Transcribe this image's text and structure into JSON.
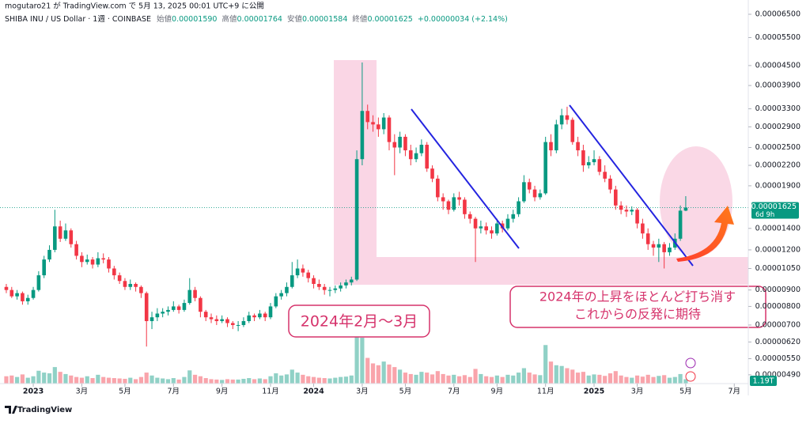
{
  "chart_data": {
    "type": "candlestick",
    "published": "mogutaro21 が TradingView.com で 5月 13, 2025 00:01 UTC+9 に公開",
    "title": "SHIBA INU / US Dollar · 1週 · COINBASE",
    "legend": {
      "open_label": "始値",
      "open": "0.00001590",
      "high_label": "高値",
      "high": "0.00001764",
      "low_label": "安値",
      "low": "0.00001584",
      "close_label": "終値",
      "close": "0.00001625",
      "change": "+0.00000034 (+2.14%)"
    },
    "last_price_label": "0.00001625",
    "countdown": "6d 9h",
    "brand": "TradingView",
    "annotations": [
      "2024年2月〜3月",
      "2024年の上昇をほとんど打ち消す",
      "これからの反発に期待"
    ],
    "up_color": "#089981",
    "down_color": "#f23645",
    "log_scale": true,
    "grid": false,
    "ylim": [
      4.6e-06,
      7.2e-05
    ],
    "yticks": [
      {
        "value": 6.5e-05,
        "label": "0.00006500"
      },
      {
        "value": 5.5e-05,
        "label": "0.00005500"
      },
      {
        "value": 4.5e-05,
        "label": "0.00004500"
      },
      {
        "value": 3.9e-05,
        "label": "0.00003900"
      },
      {
        "value": 3.3e-05,
        "label": "0.00003300"
      },
      {
        "value": 2.9e-05,
        "label": "0.00002900"
      },
      {
        "value": 2.5e-05,
        "label": "0.00002500"
      },
      {
        "value": 2.2e-05,
        "label": "0.00002200"
      },
      {
        "value": 1.9e-05,
        "label": "0.00001900"
      },
      {
        "value": 1.4e-05,
        "label": "0.00001400"
      },
      {
        "value": 1.2e-05,
        "label": "0.00001200"
      },
      {
        "value": 1.05e-05,
        "label": "0.00001050"
      },
      {
        "value": 9e-06,
        "label": "0.00000900"
      },
      {
        "value": 8e-06,
        "label": "0.00000800"
      },
      {
        "value": 7e-06,
        "label": "0.00000700"
      },
      {
        "value": 6.2e-06,
        "label": "0.00000620"
      },
      {
        "value": 5.5e-06,
        "label": "0.00000550"
      },
      {
        "value": 4.9e-06,
        "label": "0.00000490"
      }
    ],
    "xlim": [
      -1.17,
      137.6
    ],
    "xticks": [
      {
        "value": 5,
        "label": "2023"
      },
      {
        "value": 14,
        "label": "3月"
      },
      {
        "value": 22,
        "label": "5月"
      },
      {
        "value": 31,
        "label": "7月"
      },
      {
        "value": 40,
        "label": "9月"
      },
      {
        "value": 49,
        "label": "11月"
      },
      {
        "value": 57,
        "label": "2024"
      },
      {
        "value": 66,
        "label": "3月"
      },
      {
        "value": 74,
        "label": "5月"
      },
      {
        "value": 83,
        "label": "7月"
      },
      {
        "value": 91,
        "label": "9月"
      },
      {
        "value": 100,
        "label": "11月"
      },
      {
        "value": 109,
        "label": "2025"
      },
      {
        "value": 117,
        "label": "3月"
      },
      {
        "value": 126,
        "label": "5月"
      },
      {
        "value": 135,
        "label": "7月"
      }
    ],
    "ohlc": [
      [
        9.2e-06,
        9.4e-06,
        8.8e-06,
        9e-06
      ],
      [
        9e-06,
        9.2e-06,
        8.5e-06,
        8.6e-06
      ],
      [
        8.6e-06,
        9e-06,
        8.4e-06,
        8.8e-06
      ],
      [
        8.8e-06,
        8.9e-06,
        8.1e-06,
        8.3e-06
      ],
      [
        8.3e-06,
        8.7e-06,
        8.1e-06,
        8.5e-06
      ],
      [
        8.5e-06,
        9.2e-06,
        8.4e-06,
        9e-06
      ],
      [
        9e-06,
        1.03e-05,
        8.9e-06,
        1e-05
      ],
      [
        1e-05,
        1.15e-05,
        9.8e-06,
        1.12e-05
      ],
      [
        1.12e-05,
        1.24e-05,
        1.1e-05,
        1.2e-05
      ],
      [
        1.2e-05,
        1.6e-05,
        1.18e-05,
        1.42e-05
      ],
      [
        1.42e-05,
        1.48e-05,
        1.27e-05,
        1.3e-05
      ],
      [
        1.3e-05,
        1.45e-05,
        1.28e-05,
        1.38e-05
      ],
      [
        1.38e-05,
        1.4e-05,
        1.22e-05,
        1.25e-05
      ],
      [
        1.25e-05,
        1.28e-05,
        1.12e-05,
        1.15e-05
      ],
      [
        1.15e-05,
        1.18e-05,
        1.06e-05,
        1.1e-05
      ],
      [
        1.1e-05,
        1.16e-05,
        1.08e-05,
        1.12e-05
      ],
      [
        1.12e-05,
        1.14e-05,
        1.05e-05,
        1.08e-05
      ],
      [
        1.08e-05,
        1.18e-05,
        1.06e-05,
        1.13e-05
      ],
      [
        1.13e-05,
        1.17e-05,
        1.09e-05,
        1.12e-05
      ],
      [
        1.12e-05,
        1.14e-05,
        1.02e-05,
        1.05e-05
      ],
      [
        1.05e-05,
        1.07e-05,
        9.7e-06,
        1e-05
      ],
      [
        1e-05,
        1.02e-05,
        9.4e-06,
        9.6e-06
      ],
      [
        9.6e-06,
        9.8e-06,
        9e-06,
        9.2e-06
      ],
      [
        9.2e-06,
        9.7e-06,
        9e-06,
        9.4e-06
      ],
      [
        9.4e-06,
        9.5e-06,
        8.9e-06,
        9.2e-06
      ],
      [
        9.2e-06,
        9.3e-06,
        8.5e-06,
        8.8e-06
      ],
      [
        8.8e-06,
        8.9e-06,
        6e-06,
        7.2e-06
      ],
      [
        7.2e-06,
        7.7e-06,
        6.8e-06,
        7.4e-06
      ],
      [
        7.4e-06,
        7.9e-06,
        7.2e-06,
        7.6e-06
      ],
      [
        7.6e-06,
        7.9e-06,
        7.4e-06,
        7.7e-06
      ],
      [
        7.7e-06,
        8e-06,
        7.5e-06,
        7.8e-06
      ],
      [
        7.8e-06,
        8.3e-06,
        7.7e-06,
        8e-06
      ],
      [
        8e-06,
        8.1e-06,
        7.6e-06,
        7.8e-06
      ],
      [
        7.8e-06,
        8.4e-06,
        7.7e-06,
        8.2e-06
      ],
      [
        8.2e-06,
        9.8e-06,
        8.1e-06,
        9e-06
      ],
      [
        9e-06,
        9.2e-06,
        8.3e-06,
        8.5e-06
      ],
      [
        8.5e-06,
        8.6e-06,
        7.4e-06,
        7.7e-06
      ],
      [
        7.7e-06,
        7.8e-06,
        7.2e-06,
        7.4e-06
      ],
      [
        7.4e-06,
        7.6e-06,
        7.1e-06,
        7.3e-06
      ],
      [
        7.3e-06,
        7.5e-06,
        7e-06,
        7.2e-06
      ],
      [
        7.2e-06,
        7.5e-06,
        7.1e-06,
        7.3e-06
      ],
      [
        7.3e-06,
        7.4e-06,
        6.9e-06,
        7.1e-06
      ],
      [
        7.1e-06,
        7.2e-06,
        6.8e-06,
        7e-06
      ],
      [
        7e-06,
        7.2e-06,
        6.7e-06,
        7e-06
      ],
      [
        7e-06,
        7.4e-06,
        6.9e-06,
        7.2e-06
      ],
      [
        7.2e-06,
        7.7e-06,
        7.1e-06,
        7.5e-06
      ],
      [
        7.5e-06,
        7.6e-06,
        7.2e-06,
        7.4e-06
      ],
      [
        7.4e-06,
        7.8e-06,
        7.3e-06,
        7.6e-06
      ],
      [
        7.6e-06,
        7.7e-06,
        7.2e-06,
        7.4e-06
      ],
      [
        7.4e-06,
        8.2e-06,
        7.3e-06,
        8e-06
      ],
      [
        8e-06,
        8.8e-06,
        7.9e-06,
        8.6e-06
      ],
      [
        8.6e-06,
        9e-06,
        8.4e-06,
        8.8e-06
      ],
      [
        8.8e-06,
        9.5e-06,
        8.6e-06,
        9.2e-06
      ],
      [
        9.2e-06,
        1.1e-05,
        9.1e-06,
        1e-05
      ],
      [
        1e-05,
        1.12e-05,
        9.8e-06,
        1.05e-05
      ],
      [
        1.05e-05,
        1.08e-05,
        9.9e-06,
        1.02e-05
      ],
      [
        1.02e-05,
        1.04e-05,
        9.5e-06,
        9.8e-06
      ],
      [
        9.8e-06,
        1e-05,
        9.1e-06,
        9.4e-06
      ],
      [
        9.4e-06,
        9.7e-06,
        9e-06,
        9.2e-06
      ],
      [
        9.2e-06,
        9.4e-06,
        8.7e-06,
        9e-06
      ],
      [
        9e-06,
        9.2e-06,
        8.6e-06,
        9e-06
      ],
      [
        9e-06,
        9.3e-06,
        8.8e-06,
        9.1e-06
      ],
      [
        9.1e-06,
        9.5e-06,
        8.9e-06,
        9.3e-06
      ],
      [
        9.3e-06,
        9.7e-06,
        9.1e-06,
        9.5e-06
      ],
      [
        9.5e-06,
        9.9e-06,
        9.3e-06,
        9.7e-06
      ],
      [
        9.7e-06,
        2.45e-05,
        9.6e-06,
        2.3e-05
      ],
      [
        2.3e-05,
        4.6e-05,
        2.2e-05,
        3.25e-05
      ],
      [
        3.25e-05,
        3.4e-05,
        2.85e-05,
        3e-05
      ],
      [
        3e-05,
        3.15e-05,
        2.8e-05,
        2.95e-05
      ],
      [
        2.95e-05,
        3.1e-05,
        2.7e-05,
        2.85e-05
      ],
      [
        2.85e-05,
        3.2e-05,
        2.75e-05,
        3.1e-05
      ],
      [
        3.1e-05,
        3.15e-05,
        2.45e-05,
        2.6e-05
      ],
      [
        2.6e-05,
        2.75e-05,
        2.05e-05,
        2.5e-05
      ],
      [
        2.5e-05,
        2.8e-05,
        2.4e-05,
        2.7e-05
      ],
      [
        2.7e-05,
        2.75e-05,
        2.35e-05,
        2.45e-05
      ],
      [
        2.45e-05,
        2.55e-05,
        2.2e-05,
        2.3e-05
      ],
      [
        2.3e-05,
        2.5e-05,
        2.25e-05,
        2.4e-05
      ],
      [
        2.4e-05,
        2.65e-05,
        2.35e-05,
        2.55e-05
      ],
      [
        2.55e-05,
        2.6e-05,
        2.1e-05,
        2.15e-05
      ],
      [
        2.15e-05,
        2.2e-05,
        1.95e-05,
        2e-05
      ],
      [
        2e-05,
        2.05e-05,
        1.7e-05,
        1.75e-05
      ],
      [
        1.75e-05,
        1.8e-05,
        1.6e-05,
        1.7e-05
      ],
      [
        1.7e-05,
        1.72e-05,
        1.55e-05,
        1.6e-05
      ],
      [
        1.6e-05,
        1.8e-05,
        1.58e-05,
        1.75e-05
      ],
      [
        1.75e-05,
        1.82e-05,
        1.65e-05,
        1.72e-05
      ],
      [
        1.72e-05,
        1.75e-05,
        1.5e-05,
        1.55e-05
      ],
      [
        1.55e-05,
        1.58e-05,
        1.45e-05,
        1.5e-05
      ],
      [
        1.5e-05,
        1.52e-05,
        1.1e-05,
        1.4e-05
      ],
      [
        1.4e-05,
        1.48e-05,
        1.35e-05,
        1.42e-05
      ],
      [
        1.42e-05,
        1.46e-05,
        1.34e-05,
        1.38e-05
      ],
      [
        1.38e-05,
        1.42e-05,
        1.3e-05,
        1.35e-05
      ],
      [
        1.35e-05,
        1.5e-05,
        1.33e-05,
        1.45e-05
      ],
      [
        1.45e-05,
        1.48e-05,
        1.36e-05,
        1.4e-05
      ],
      [
        1.4e-05,
        1.55e-05,
        1.38e-05,
        1.5e-05
      ],
      [
        1.5e-05,
        1.6e-05,
        1.46e-05,
        1.55e-05
      ],
      [
        1.55e-05,
        1.75e-05,
        1.52e-05,
        1.7e-05
      ],
      [
        1.7e-05,
        2.05e-05,
        1.68e-05,
        1.95e-05
      ],
      [
        1.95e-05,
        2e-05,
        1.8e-05,
        1.85e-05
      ],
      [
        1.85e-05,
        1.9e-05,
        1.7e-05,
        1.75e-05
      ],
      [
        1.75e-05,
        1.85e-05,
        1.72e-05,
        1.8e-05
      ],
      [
        1.8e-05,
        2.7e-05,
        1.78e-05,
        2.6e-05
      ],
      [
        2.6e-05,
        2.75e-05,
        2.35e-05,
        2.45e-05
      ],
      [
        2.45e-05,
        3.05e-05,
        2.4e-05,
        2.95e-05
      ],
      [
        2.95e-05,
        3.3e-05,
        2.85e-05,
        3.15e-05
      ],
      [
        3.15e-05,
        3.35e-05,
        2.95e-05,
        3.05e-05
      ],
      [
        3.05e-05,
        3.1e-05,
        2.55e-05,
        2.6e-05
      ],
      [
        2.6e-05,
        2.7e-05,
        2.35e-05,
        2.45e-05
      ],
      [
        2.45e-05,
        2.55e-05,
        2.1e-05,
        2.2e-05
      ],
      [
        2.2e-05,
        2.35e-05,
        2.15e-05,
        2.25e-05
      ],
      [
        2.25e-05,
        2.45e-05,
        2.2e-05,
        2.3e-05
      ],
      [
        2.3e-05,
        2.35e-05,
        2.05e-05,
        2.1e-05
      ],
      [
        2.1e-05,
        2.2e-05,
        1.95e-05,
        2e-05
      ],
      [
        2e-05,
        2.05e-05,
        1.8e-05,
        1.85e-05
      ],
      [
        1.85e-05,
        1.9e-05,
        1.6e-05,
        1.65e-05
      ],
      [
        1.65e-05,
        1.7e-05,
        1.55e-05,
        1.6e-05
      ],
      [
        1.6e-05,
        1.65e-05,
        1.52e-05,
        1.58e-05
      ],
      [
        1.58e-05,
        1.64e-05,
        1.54e-05,
        1.6e-05
      ],
      [
        1.6e-05,
        1.62e-05,
        1.4e-05,
        1.45e-05
      ],
      [
        1.45e-05,
        1.5e-05,
        1.3e-05,
        1.35e-05
      ],
      [
        1.35e-05,
        1.4e-05,
        1.2e-05,
        1.25e-05
      ],
      [
        1.25e-05,
        1.28e-05,
        1.15e-05,
        1.22e-05
      ],
      [
        1.22e-05,
        1.3e-05,
        1.1e-05,
        1.25e-05
      ],
      [
        1.25e-05,
        1.27e-05,
        1.05e-05,
        1.18e-05
      ],
      [
        1.18e-05,
        1.26e-05,
        1.15e-05,
        1.22e-05
      ],
      [
        1.22e-05,
        1.35e-05,
        1.2e-05,
        1.3e-05
      ],
      [
        1.3e-05,
        1.65e-05,
        1.28e-05,
        1.59e-05
      ],
      [
        1.59e-05,
        1.764e-05,
        1.584e-05,
        1.625e-05
      ]
    ],
    "volume": {
      "vlim": [
        0,
        14
      ],
      "last_value_label": "1.19T",
      "values": [
        2.0,
        2.2,
        1.8,
        2.5,
        1.6,
        2.0,
        3.5,
        3.0,
        2.8,
        4.5,
        3.2,
        2.6,
        2.2,
        1.8,
        1.6,
        2.0,
        1.5,
        2.4,
        1.8,
        1.6,
        1.5,
        1.4,
        1.3,
        1.6,
        1.2,
        1.8,
        3.0,
        2.2,
        1.6,
        1.4,
        1.2,
        1.5,
        1.1,
        1.8,
        3.6,
        2.4,
        2.0,
        1.5,
        1.2,
        1.1,
        1.0,
        1.2,
        1.1,
        1.1,
        1.3,
        1.5,
        1.2,
        1.4,
        1.2,
        2.0,
        2.8,
        2.2,
        2.5,
        3.8,
        3.0,
        2.4,
        2.0,
        1.8,
        1.6,
        1.5,
        1.4,
        1.6,
        1.8,
        1.9,
        2.2,
        13.0,
        12.5,
        7.0,
        5.5,
        5.0,
        6.0,
        5.2,
        4.5,
        3.8,
        3.0,
        2.6,
        2.4,
        3.2,
        3.0,
        2.5,
        3.4,
        2.6,
        2.2,
        2.4,
        2.0,
        2.3,
        1.8,
        4.0,
        2.6,
        2.0,
        1.8,
        2.2,
        1.8,
        2.4,
        2.2,
        3.0,
        4.2,
        3.0,
        2.5,
        2.3,
        10.5,
        6.0,
        5.0,
        4.8,
        4.2,
        3.8,
        3.0,
        3.2,
        2.2,
        2.5,
        2.4,
        2.1,
        2.8,
        3.4,
        2.2,
        1.8,
        1.6,
        2.2,
        1.9,
        2.4,
        1.8,
        2.1,
        2.3,
        1.6,
        1.8,
        2.6,
        1.19
      ]
    }
  }
}
